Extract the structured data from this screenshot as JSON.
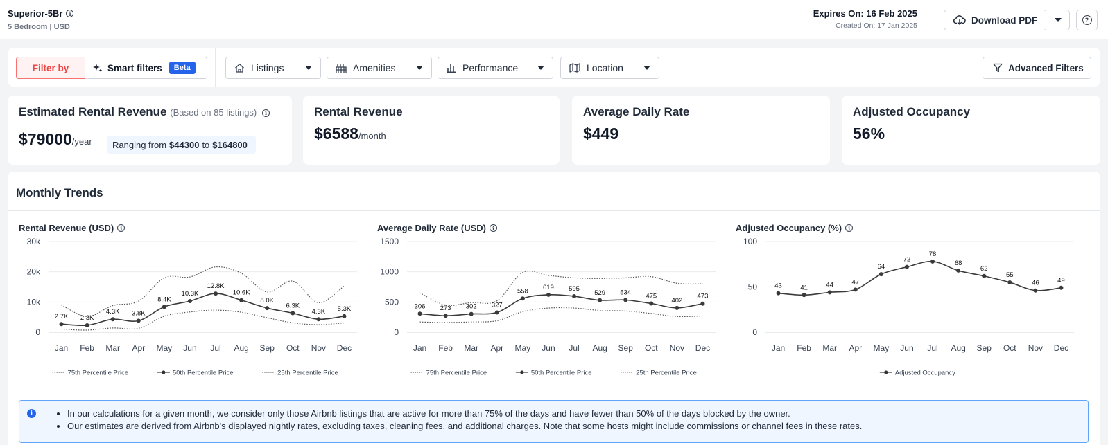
{
  "header": {
    "property_name": "Superior-5Br",
    "subtitle": "5 Bedroom | USD",
    "expires": "Expires On: 16 Feb 2025",
    "created": "Created On: 17 Jan 2025",
    "download_label": "Download PDF"
  },
  "filters": {
    "filter_by": "Filter by",
    "smart_filters": "Smart filters",
    "beta": "Beta",
    "dropdowns": [
      "Listings",
      "Amenities",
      "Performance",
      "Location"
    ],
    "advanced": "Advanced Filters"
  },
  "kpis": {
    "estimated": {
      "title": "Estimated Rental Revenue",
      "note": "(Based on 85 listings)",
      "value": "$79000",
      "unit": "/year",
      "range_prefix": "Ranging from",
      "range_low": "$44300",
      "range_mid": "to",
      "range_high": "$164800"
    },
    "rental_revenue": {
      "title": "Rental Revenue",
      "value": "$6588",
      "unit": "/month"
    },
    "adr": {
      "title": "Average Daily Rate",
      "value": "$449"
    },
    "occupancy": {
      "title": "Adjusted Occupancy",
      "value": "56%"
    }
  },
  "trends": {
    "title": "Monthly Trends"
  },
  "chart_data": [
    {
      "type": "line",
      "title": "Rental Revenue (USD)",
      "categories": [
        "Jan",
        "Feb",
        "Mar",
        "Apr",
        "May",
        "Jun",
        "Jul",
        "Aug",
        "Sep",
        "Oct",
        "Nov",
        "Dec"
      ],
      "ylim": [
        0,
        30000
      ],
      "yticks": [
        0,
        10000,
        20000,
        30000
      ],
      "ytick_labels": [
        "0",
        "10k",
        "20k",
        "30k"
      ],
      "series": [
        {
          "name": "75th Percentile Price",
          "style": "dotted",
          "values": [
            9000,
            5200,
            8800,
            10300,
            18000,
            18300,
            21600,
            19500,
            13300,
            16900,
            9800,
            15300
          ]
        },
        {
          "name": "50th Percentile Price",
          "style": "solid",
          "values": [
            2700,
            2300,
            4300,
            3800,
            8400,
            10300,
            12800,
            10600,
            8000,
            6300,
            4300,
            5300
          ],
          "labels": [
            "2.7K",
            "2.3K",
            "4.3K",
            "3.8K",
            "8.4K",
            "10.3K",
            "12.8K",
            "10.6K",
            "8.0K",
            "6.3K",
            "4.3K",
            "5.3K"
          ]
        },
        {
          "name": "25th Percentile Price",
          "style": "dotted",
          "values": [
            1000,
            700,
            1400,
            1300,
            5300,
            6700,
            7300,
            6600,
            4800,
            3100,
            2500,
            3100
          ]
        }
      ],
      "grid": true,
      "legend": "bottom"
    },
    {
      "type": "line",
      "title": "Average Daily Rate (USD)",
      "categories": [
        "Jan",
        "Feb",
        "Mar",
        "Apr",
        "May",
        "Jun",
        "Jul",
        "Aug",
        "Sep",
        "Oct",
        "Nov",
        "Dec"
      ],
      "ylim": [
        0,
        1500
      ],
      "yticks": [
        0,
        500,
        1000,
        1500
      ],
      "ytick_labels": [
        "0",
        "500",
        "1000",
        "1500"
      ],
      "series": [
        {
          "name": "75th Percentile Price",
          "style": "dotted",
          "values": [
            650,
            450,
            490,
            520,
            990,
            940,
            900,
            890,
            900,
            920,
            810,
            800
          ]
        },
        {
          "name": "50th Percentile Price",
          "style": "solid",
          "values": [
            306,
            273,
            302,
            327,
            558,
            619,
            595,
            529,
            534,
            475,
            402,
            473
          ],
          "labels": [
            "306",
            "273",
            "302",
            "327",
            "558",
            "619",
            "595",
            "529",
            "534",
            "475",
            "402",
            "473"
          ]
        },
        {
          "name": "25th Percentile Price",
          "style": "dotted",
          "values": [
            170,
            160,
            170,
            190,
            340,
            400,
            400,
            360,
            350,
            310,
            260,
            270
          ]
        }
      ],
      "grid": true,
      "legend": "bottom"
    },
    {
      "type": "line",
      "title": "Adjusted Occupancy (%)",
      "categories": [
        "Jan",
        "Feb",
        "Mar",
        "Apr",
        "May",
        "Jun",
        "Jul",
        "Aug",
        "Sep",
        "Oct",
        "Nov",
        "Dec"
      ],
      "ylim": [
        0,
        100
      ],
      "yticks": [
        0,
        50,
        100
      ],
      "ytick_labels": [
        "0",
        "50",
        "100"
      ],
      "series": [
        {
          "name": "Adjusted Occupancy",
          "style": "solid",
          "values": [
            43,
            41,
            44,
            47,
            64,
            72,
            78,
            68,
            62,
            55,
            46,
            49
          ],
          "labels": [
            "43",
            "41",
            "44",
            "47",
            "64",
            "72",
            "78",
            "68",
            "62",
            "55",
            "46",
            "49"
          ]
        }
      ],
      "grid": true,
      "legend": "bottom"
    }
  ],
  "notice": {
    "lines": [
      "In our calculations for a given month, we consider only those Airbnb listings that are active for more than 75% of the days and have fewer than 50% of the days blocked by the owner.",
      "Our estimates are derived from Airbnb's displayed nightly rates, excluding taxes, cleaning fees, and additional charges. Note that some hosts might include commissions or channel fees in these rates."
    ]
  }
}
